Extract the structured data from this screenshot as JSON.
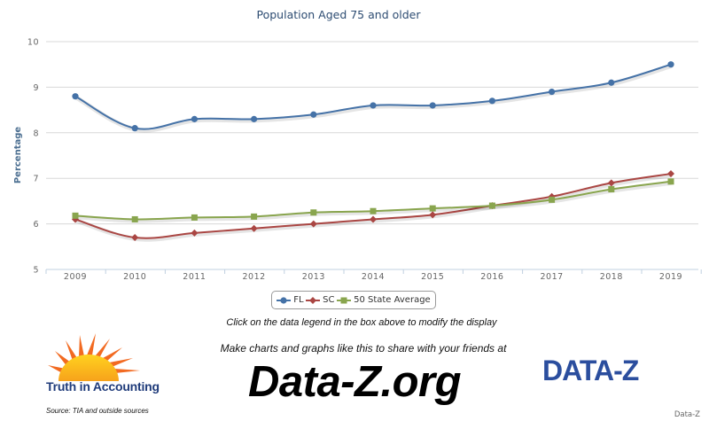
{
  "chart_data": {
    "type": "line",
    "title": "Population Aged 75 and older",
    "ylabel": "Percentage",
    "xlabel": "",
    "categories": [
      "2009",
      "2010",
      "2011",
      "2012",
      "2013",
      "2014",
      "2015",
      "2016",
      "2017",
      "2018",
      "2019"
    ],
    "ylim": [
      5,
      10
    ],
    "yticks": [
      5,
      6,
      7,
      8,
      9,
      10
    ],
    "grid": true,
    "legend_position": "bottom-center",
    "series": [
      {
        "name": "FL",
        "color": "#4572a7",
        "marker": "circle",
        "values": [
          8.8,
          8.1,
          8.3,
          8.3,
          8.4,
          8.6,
          8.6,
          8.7,
          8.9,
          9.1,
          9.5
        ]
      },
      {
        "name": "SC",
        "color": "#aa4643",
        "marker": "diamond",
        "values": [
          6.1,
          5.7,
          5.8,
          5.9,
          6.0,
          6.1,
          6.2,
          6.4,
          6.6,
          6.9,
          7.1
        ]
      },
      {
        "name": "50 State Average",
        "color": "#89a54e",
        "marker": "square",
        "values": [
          6.18,
          6.1,
          6.14,
          6.16,
          6.25,
          6.28,
          6.34,
          6.4,
          6.53,
          6.76,
          6.93
        ]
      }
    ]
  },
  "hint_text": "Click on the data legend in the box above to modify the display",
  "share_text": "Make charts and graphs like this to share with your friends at",
  "site_text": "Data-Z.org",
  "tia_logo_text": "Truth in Accounting",
  "dz_logo_text": "DATA-Z",
  "source_text": "Source: TIA and outside sources",
  "credit_text": "Data-Z"
}
